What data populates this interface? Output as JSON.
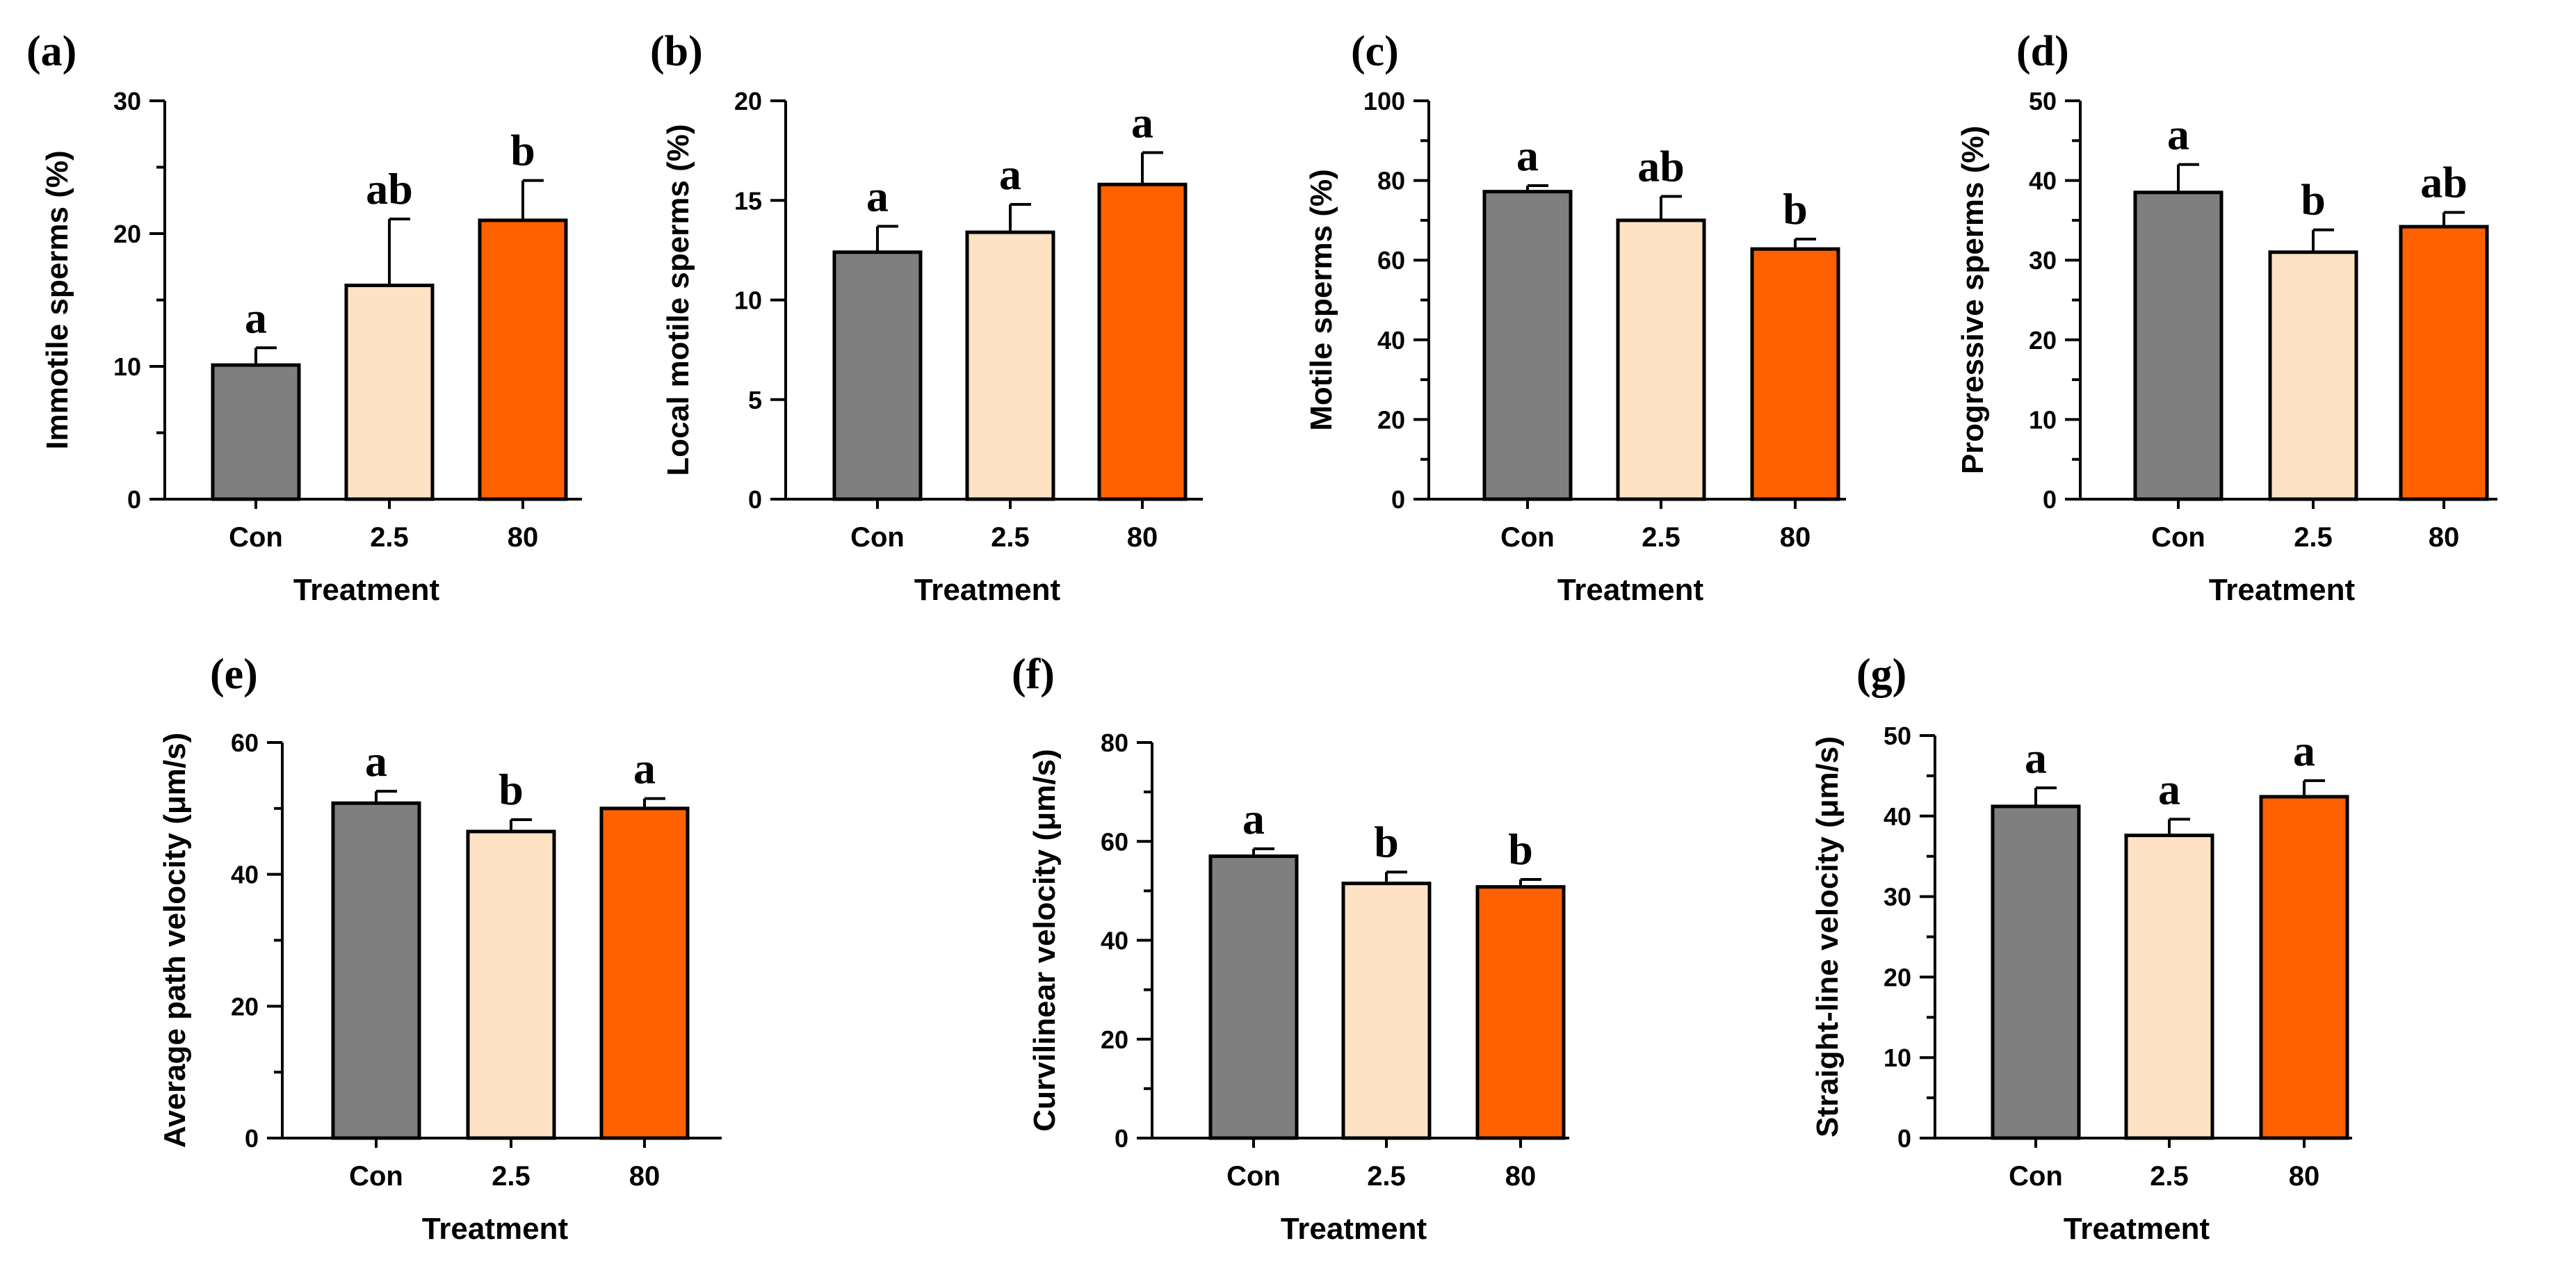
{
  "figure": {
    "colors": {
      "Con": "#7f7f7f",
      "2.5": "#fde2c4",
      "80": "#ff6100"
    }
  },
  "chart_data": [
    {
      "panel": "(a)",
      "type": "bar",
      "categories": [
        "Con",
        "2.5",
        "80"
      ],
      "values": [
        10.1,
        16.1,
        21.0
      ],
      "errors": [
        1.3,
        5.0,
        3.0
      ],
      "significance": [
        "a",
        "ab",
        "b"
      ],
      "xlabel": "Treatment",
      "ylabel": "Immotile sperms (%)",
      "ylim": [
        0,
        30
      ],
      "yticks": [
        "0",
        "10",
        "20",
        "30"
      ],
      "minor_per_major": 2
    },
    {
      "panel": "(b)",
      "type": "bar",
      "categories": [
        "Con",
        "2.5",
        "80"
      ],
      "values": [
        12.4,
        13.4,
        15.8
      ],
      "errors": [
        1.3,
        1.4,
        1.6
      ],
      "significance": [
        "a",
        "a",
        "a"
      ],
      "xlabel": "Treatment",
      "ylabel": "Local motile sperms (%)",
      "ylim": [
        0,
        20
      ],
      "yticks": [
        "0",
        "5",
        "10",
        "15",
        "20"
      ],
      "minor_per_major": 0
    },
    {
      "panel": "(c)",
      "type": "bar",
      "categories": [
        "Con",
        "2.5",
        "80"
      ],
      "values": [
        77.2,
        70.0,
        62.8
      ],
      "errors": [
        1.5,
        6.0,
        2.5
      ],
      "significance": [
        "a",
        "ab",
        "b"
      ],
      "xlabel": "Treatment",
      "ylabel": "Motile sperms (%)",
      "ylim": [
        0,
        100
      ],
      "yticks": [
        "0",
        "20",
        "40",
        "60",
        "80",
        "100"
      ],
      "minor_per_major": 2
    },
    {
      "panel": "(d)",
      "type": "bar",
      "categories": [
        "Con",
        "2.5",
        "80"
      ],
      "values": [
        38.5,
        31.0,
        34.2
      ],
      "errors": [
        3.5,
        2.8,
        1.8
      ],
      "significance": [
        "a",
        "b",
        "ab"
      ],
      "xlabel": "Treatment",
      "ylabel": "Progressive sperms (%)",
      "ylim": [
        0,
        50
      ],
      "yticks": [
        "0",
        "10",
        "20",
        "30",
        "40",
        "50"
      ],
      "minor_per_major": 2
    },
    {
      "panel": "(e)",
      "type": "bar",
      "categories": [
        "Con",
        "2.5",
        "80"
      ],
      "values": [
        50.8,
        46.5,
        50.0
      ],
      "errors": [
        1.8,
        1.8,
        1.5
      ],
      "significance": [
        "a",
        "b",
        "a"
      ],
      "xlabel": "Treatment",
      "ylabel": "Average path velocity (μm/s)",
      "ylim": [
        0,
        60
      ],
      "yticks": [
        "0",
        "20",
        "40",
        "60"
      ],
      "minor_per_major": 2
    },
    {
      "panel": "(f)",
      "type": "bar",
      "categories": [
        "Con",
        "2.5",
        "80"
      ],
      "values": [
        57.0,
        51.5,
        50.8
      ],
      "errors": [
        1.5,
        2.3,
        1.5
      ],
      "significance": [
        "a",
        "b",
        "b"
      ],
      "xlabel": "Treatment",
      "ylabel": "Curvilinear velocity (μm/s)",
      "ylim": [
        0,
        80
      ],
      "yticks": [
        "0",
        "20",
        "40",
        "60",
        "80"
      ],
      "minor_per_major": 2
    },
    {
      "panel": "(g)",
      "type": "bar",
      "categories": [
        "Con",
        "2.5",
        "80"
      ],
      "values": [
        41.2,
        37.6,
        42.4
      ],
      "errors": [
        2.3,
        2.0,
        2.0
      ],
      "significance": [
        "a",
        "a",
        "a"
      ],
      "xlabel": "Treatment",
      "ylabel": "Straight-line velocity (μm/s)",
      "ylim": [
        0,
        50
      ],
      "yticks": [
        "0",
        "10",
        "20",
        "30",
        "40",
        "50"
      ],
      "minor_per_major": 2
    }
  ]
}
